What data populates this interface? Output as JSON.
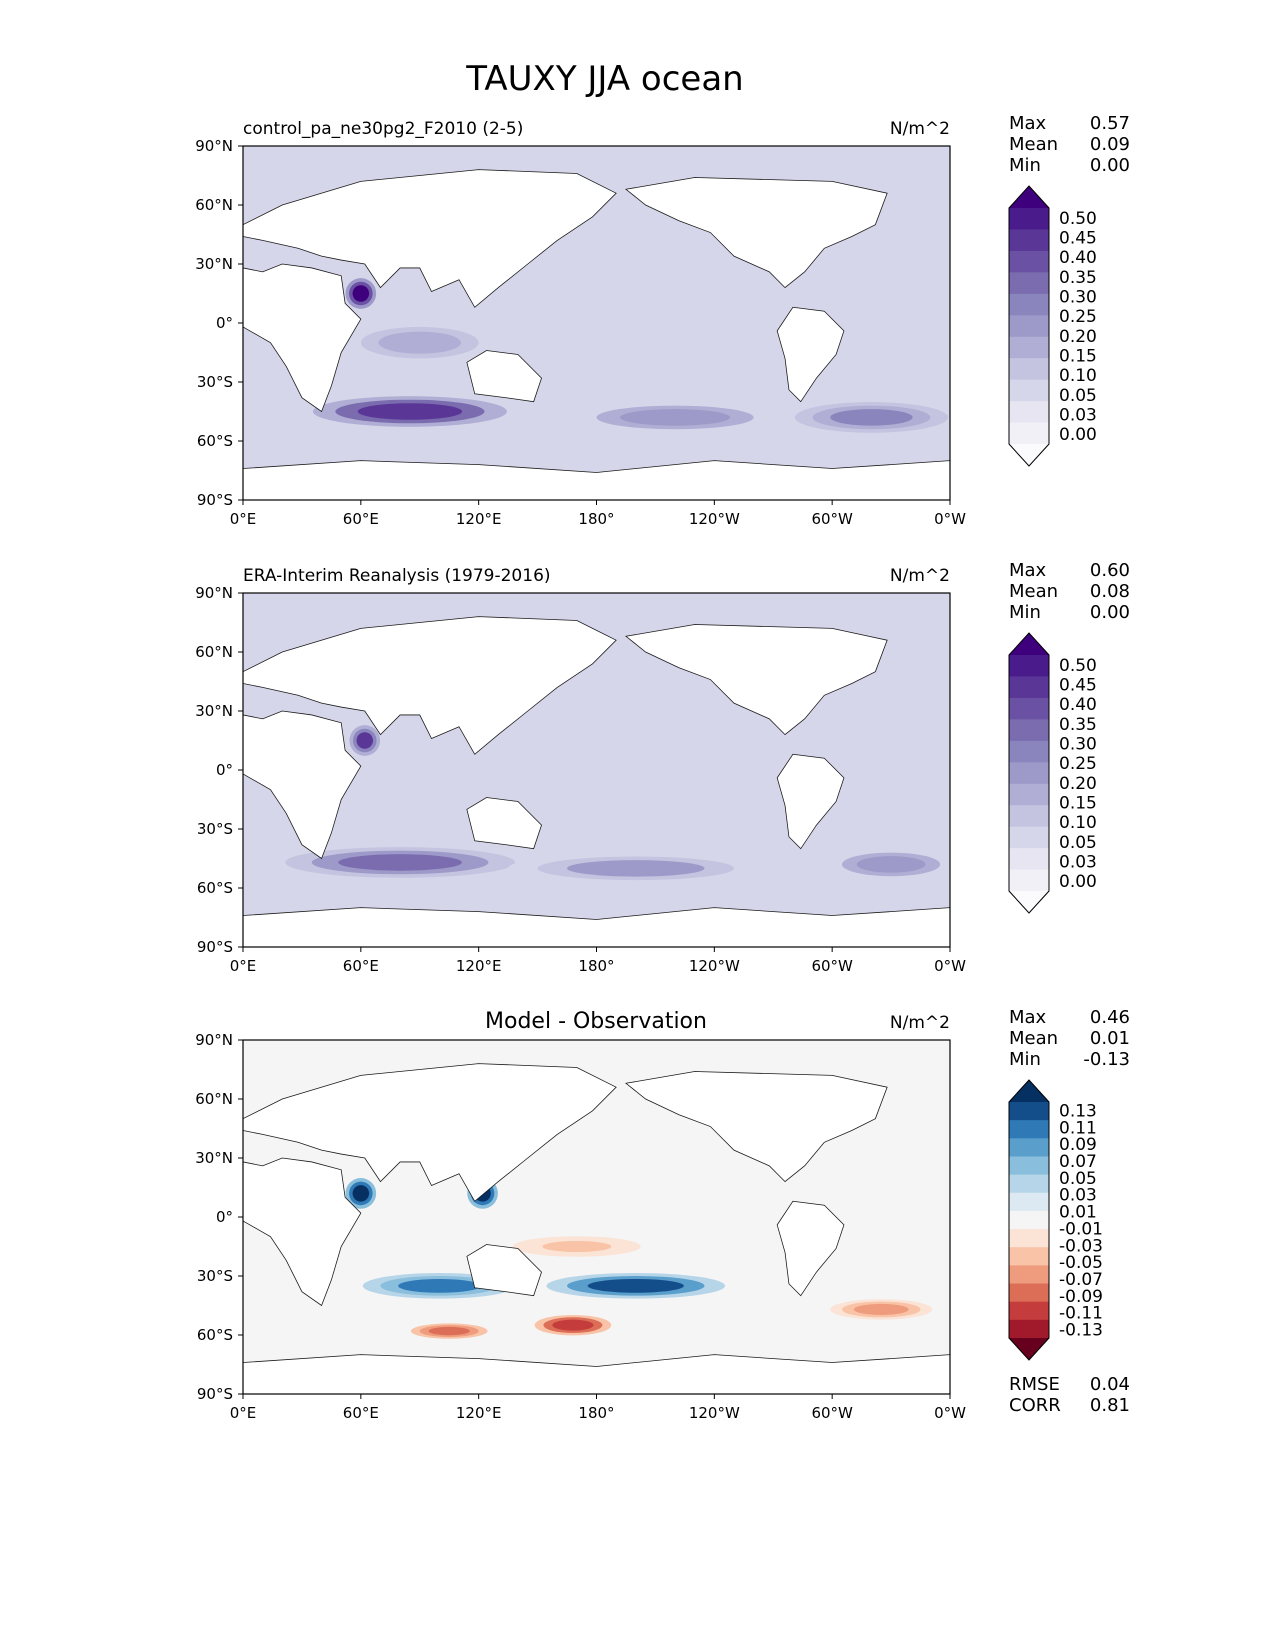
{
  "figure_title": "TAUXY JJA ocean",
  "colors": {
    "land": "#ffffff",
    "coast": "#1a1a1a",
    "purple_scale": [
      "#fbfafd",
      "#f2f0f7",
      "#e6e5f1",
      "#d6d6ea",
      "#c4c4e0",
      "#b0aed4",
      "#9d99c8",
      "#8a85bc",
      "#7a6caf",
      "#6a51a3",
      "#5a3697",
      "#4a1b8a",
      "#3f007d"
    ],
    "diff_scale": [
      "#67001f",
      "#a11a2c",
      "#c43c3c",
      "#dc6e57",
      "#ef9c7e",
      "#f8c3a6",
      "#fbe3d6",
      "#f5f5f5",
      "#dce9f2",
      "#b7d5e8",
      "#89bedc",
      "#5a9ecc",
      "#3079b7",
      "#134e8b",
      "#053061"
    ]
  },
  "chart_data": [
    {
      "type": "heatmap",
      "panel_title": "control_pa_ne30pg2_F2010 (2-5)",
      "units": "N/m^2",
      "stats": {
        "max_label": "Max",
        "max": "0.57",
        "mean_label": "Mean",
        "mean": "0.09",
        "min_label": "Min",
        "min": "0.00"
      },
      "x_ticks": [
        "0°E",
        "60°E",
        "120°E",
        "180°",
        "120°W",
        "60°W",
        "0°W"
      ],
      "y_ticks": [
        "90°N",
        "60°N",
        "30°N",
        "0°",
        "30°S",
        "60°S",
        "90°S"
      ],
      "xlim": [
        0,
        360
      ],
      "ylim": [
        -90,
        90
      ],
      "colorbar_levels": [
        "0.50",
        "0.45",
        "0.40",
        "0.35",
        "0.30",
        "0.25",
        "0.20",
        "0.15",
        "0.10",
        "0.05",
        "0.03",
        "0.00"
      ],
      "colormap": "purple",
      "features": [
        {
          "lon": 85,
          "lat": -45,
          "v": 0.42,
          "rx": 38,
          "ry": 6
        },
        {
          "lon": 60,
          "lat": 15,
          "v": 0.55,
          "rx": 6,
          "ry": 6
        },
        {
          "lon": 220,
          "lat": -48,
          "v": 0.22,
          "rx": 40,
          "ry": 6
        },
        {
          "lon": 320,
          "lat": -48,
          "v": 0.26,
          "rx": 30,
          "ry": 6
        },
        {
          "lon": 90,
          "lat": -10,
          "v": 0.18,
          "rx": 30,
          "ry": 8
        }
      ]
    },
    {
      "type": "heatmap",
      "panel_title": "ERA-Interim Reanalysis (1979-2016)",
      "units": "N/m^2",
      "stats": {
        "max_label": "Max",
        "max": "0.60",
        "mean_label": "Mean",
        "mean": "0.08",
        "min_label": "Min",
        "min": "0.00"
      },
      "x_ticks": [
        "0°E",
        "60°E",
        "120°E",
        "180°",
        "120°W",
        "60°W",
        "0°W"
      ],
      "y_ticks": [
        "90°N",
        "60°N",
        "30°N",
        "0°",
        "30°S",
        "60°S",
        "90°S"
      ],
      "xlim": [
        0,
        360
      ],
      "ylim": [
        -90,
        90
      ],
      "colorbar_levels": [
        "0.50",
        "0.45",
        "0.40",
        "0.35",
        "0.30",
        "0.25",
        "0.20",
        "0.15",
        "0.10",
        "0.05",
        "0.03",
        "0.00"
      ],
      "colormap": "purple",
      "features": [
        {
          "lon": 80,
          "lat": -47,
          "v": 0.3,
          "rx": 45,
          "ry": 6
        },
        {
          "lon": 62,
          "lat": 15,
          "v": 0.4,
          "rx": 6,
          "ry": 6
        },
        {
          "lon": 200,
          "lat": -50,
          "v": 0.2,
          "rx": 50,
          "ry": 6
        },
        {
          "lon": 330,
          "lat": -48,
          "v": 0.22,
          "rx": 25,
          "ry": 6
        }
      ]
    },
    {
      "type": "heatmap",
      "panel_title": "Model - Observation",
      "units": "N/m^2",
      "stats": {
        "max_label": "Max",
        "max": "0.46",
        "mean_label": "Mean",
        "mean": "0.01",
        "min_label": "Min",
        "min": "-0.13"
      },
      "metrics": {
        "rmse_label": "RMSE",
        "rmse": "0.04",
        "corr_label": "CORR",
        "corr": "0.81"
      },
      "x_ticks": [
        "0°E",
        "60°E",
        "120°E",
        "180°",
        "120°W",
        "60°W",
        "0°W"
      ],
      "y_ticks": [
        "90°N",
        "60°N",
        "30°N",
        "0°",
        "30°S",
        "60°S",
        "90°S"
      ],
      "xlim": [
        0,
        360
      ],
      "ylim": [
        -90,
        90
      ],
      "colorbar_levels": [
        "0.13",
        "0.11",
        "0.09",
        "0.07",
        "0.05",
        "0.03",
        "0.01",
        "-0.01",
        "-0.03",
        "-0.05",
        "-0.07",
        "-0.09",
        "-0.11",
        "-0.13"
      ],
      "colormap": "diff",
      "features": [
        {
          "lon": 100,
          "lat": -35,
          "v": 0.09,
          "rx": 30,
          "ry": 5
        },
        {
          "lon": 200,
          "lat": -35,
          "v": 0.11,
          "rx": 35,
          "ry": 5
        },
        {
          "lon": 60,
          "lat": 12,
          "v": 0.13,
          "rx": 6,
          "ry": 6
        },
        {
          "lon": 122,
          "lat": 12,
          "v": 0.13,
          "rx": 6,
          "ry": 6
        },
        {
          "lon": 105,
          "lat": -58,
          "v": -0.09,
          "rx": 15,
          "ry": 3
        },
        {
          "lon": 168,
          "lat": -55,
          "v": -0.11,
          "rx": 15,
          "ry": 4
        },
        {
          "lon": 325,
          "lat": -47,
          "v": -0.07,
          "rx": 20,
          "ry": 4
        },
        {
          "lon": 170,
          "lat": -15,
          "v": -0.04,
          "rx": 25,
          "ry": 4
        }
      ]
    }
  ]
}
